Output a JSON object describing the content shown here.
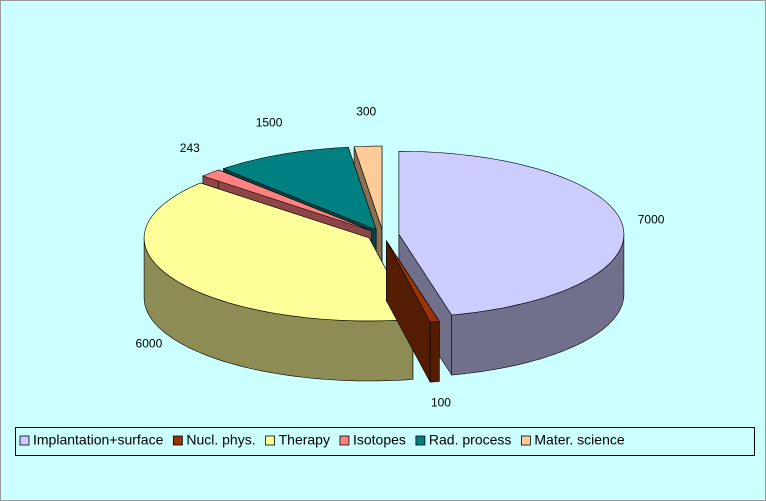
{
  "chart_data": {
    "type": "pie3d",
    "categories": [
      "Implantation+surface",
      "Nucl. phys.",
      "Therapy",
      "Isotopes",
      "Rad. process",
      "Mater. science"
    ],
    "values": [
      7000,
      100,
      6000,
      243,
      1500,
      300
    ],
    "colors": [
      "#ccccff",
      "#993300",
      "#ffff99",
      "#ff8080",
      "#008080",
      "#ffcc99"
    ],
    "legend": "bottom"
  }
}
